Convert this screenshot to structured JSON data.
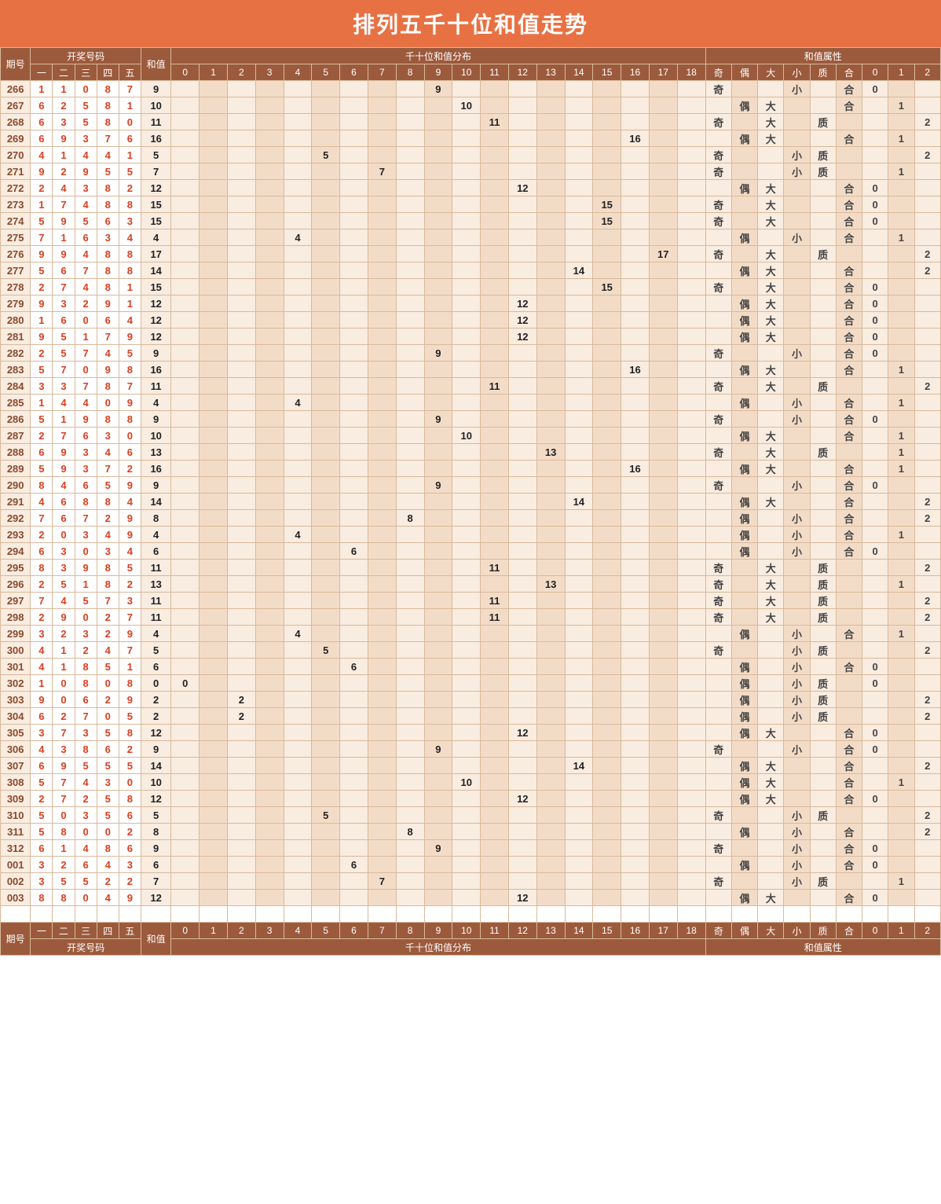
{
  "title": "排列五千十位和值走势",
  "headers": {
    "period": "期号",
    "nums_group": "开奖号码",
    "num_labels": [
      "一",
      "二",
      "三",
      "四",
      "五"
    ],
    "sum": "和值",
    "dist_group": "千十位和值分布",
    "dist_labels": [
      "0",
      "1",
      "2",
      "3",
      "4",
      "5",
      "6",
      "7",
      "8",
      "9",
      "10",
      "11",
      "12",
      "13",
      "14",
      "15",
      "16",
      "17",
      "18"
    ],
    "attr_group": "和值属性",
    "attr_labels": [
      "奇",
      "偶",
      "大",
      "小",
      "质",
      "合",
      "0",
      "1",
      "2"
    ]
  },
  "colors": {
    "title_bg": "#e87143",
    "header_bg": "#9c5a3c",
    "border": "#d9b99b",
    "cell_bg1": "#f9ece0",
    "cell_bg2": "#f3dcc7",
    "num_color": "#d94020"
  },
  "rows": [
    {
      "p": "266",
      "n": [
        1,
        1,
        0,
        8,
        7
      ],
      "s": 9,
      "a": {
        "奇": 1,
        "小": 1,
        "合": 1,
        "0": 1
      }
    },
    {
      "p": "267",
      "n": [
        6,
        2,
        5,
        8,
        1
      ],
      "s": 10,
      "a": {
        "偶": 1,
        "大": 1,
        "合": 1,
        "1": 1
      }
    },
    {
      "p": "268",
      "n": [
        6,
        3,
        5,
        8,
        0
      ],
      "s": 11,
      "a": {
        "奇": 1,
        "大": 1,
        "质": 1,
        "2": 1
      }
    },
    {
      "p": "269",
      "n": [
        6,
        9,
        3,
        7,
        6
      ],
      "s": 16,
      "a": {
        "偶": 1,
        "大": 1,
        "合": 1,
        "1": 1
      }
    },
    {
      "p": "270",
      "n": [
        4,
        1,
        4,
        4,
        1
      ],
      "s": 5,
      "a": {
        "奇": 1,
        "小": 1,
        "质": 1,
        "2": 1
      }
    },
    {
      "p": "271",
      "n": [
        9,
        2,
        9,
        5,
        5
      ],
      "s": 7,
      "a": {
        "奇": 1,
        "小": 1,
        "质": 1,
        "1": 1
      }
    },
    {
      "p": "272",
      "n": [
        2,
        4,
        3,
        8,
        2
      ],
      "s": 12,
      "a": {
        "偶": 1,
        "大": 1,
        "合": 1,
        "0": 1
      }
    },
    {
      "p": "273",
      "n": [
        1,
        7,
        4,
        8,
        8
      ],
      "s": 15,
      "a": {
        "奇": 1,
        "大": 1,
        "合": 1,
        "0": 1
      }
    },
    {
      "p": "274",
      "n": [
        5,
        9,
        5,
        6,
        3
      ],
      "s": 15,
      "a": {
        "奇": 1,
        "大": 1,
        "合": 1,
        "0": 1
      }
    },
    {
      "p": "275",
      "n": [
        7,
        1,
        6,
        3,
        4
      ],
      "s": 4,
      "a": {
        "偶": 1,
        "小": 1,
        "合": 1,
        "1": 1
      }
    },
    {
      "p": "276",
      "n": [
        9,
        9,
        4,
        8,
        8
      ],
      "s": 17,
      "a": {
        "奇": 1,
        "大": 1,
        "质": 1,
        "2": 1
      }
    },
    {
      "p": "277",
      "n": [
        5,
        6,
        7,
        8,
        8
      ],
      "s": 14,
      "a": {
        "偶": 1,
        "大": 1,
        "合": 1,
        "2": 1
      }
    },
    {
      "p": "278",
      "n": [
        2,
        7,
        4,
        8,
        1
      ],
      "s": 15,
      "a": {
        "奇": 1,
        "大": 1,
        "合": 1,
        "0": 1
      }
    },
    {
      "p": "279",
      "n": [
        9,
        3,
        2,
        9,
        1
      ],
      "s": 12,
      "a": {
        "偶": 1,
        "大": 1,
        "合": 1,
        "0": 1
      }
    },
    {
      "p": "280",
      "n": [
        1,
        6,
        0,
        6,
        4
      ],
      "s": 12,
      "a": {
        "偶": 1,
        "大": 1,
        "合": 1,
        "0": 1
      }
    },
    {
      "p": "281",
      "n": [
        9,
        5,
        1,
        7,
        9
      ],
      "s": 12,
      "a": {
        "偶": 1,
        "大": 1,
        "合": 1,
        "0": 1
      }
    },
    {
      "p": "282",
      "n": [
        2,
        5,
        7,
        4,
        5
      ],
      "s": 9,
      "a": {
        "奇": 1,
        "小": 1,
        "合": 1,
        "0": 1
      }
    },
    {
      "p": "283",
      "n": [
        5,
        7,
        0,
        9,
        8
      ],
      "s": 16,
      "a": {
        "偶": 1,
        "大": 1,
        "合": 1,
        "1": 1
      }
    },
    {
      "p": "284",
      "n": [
        3,
        3,
        7,
        8,
        7
      ],
      "s": 11,
      "a": {
        "奇": 1,
        "大": 1,
        "质": 1,
        "2": 1
      }
    },
    {
      "p": "285",
      "n": [
        1,
        4,
        4,
        0,
        9
      ],
      "s": 4,
      "a": {
        "偶": 1,
        "小": 1,
        "合": 1,
        "1": 1
      }
    },
    {
      "p": "286",
      "n": [
        5,
        1,
        9,
        8,
        8
      ],
      "s": 9,
      "a": {
        "奇": 1,
        "小": 1,
        "合": 1,
        "0": 1
      }
    },
    {
      "p": "287",
      "n": [
        2,
        7,
        6,
        3,
        0
      ],
      "s": 10,
      "a": {
        "偶": 1,
        "大": 1,
        "合": 1,
        "1": 1
      }
    },
    {
      "p": "288",
      "n": [
        6,
        9,
        3,
        4,
        6
      ],
      "s": 13,
      "a": {
        "奇": 1,
        "大": 1,
        "质": 1,
        "1": 1
      }
    },
    {
      "p": "289",
      "n": [
        5,
        9,
        3,
        7,
        2
      ],
      "s": 16,
      "a": {
        "偶": 1,
        "大": 1,
        "合": 1,
        "1": 1
      }
    },
    {
      "p": "290",
      "n": [
        8,
        4,
        6,
        5,
        9
      ],
      "s": 9,
      "a": {
        "奇": 1,
        "小": 1,
        "合": 1,
        "0": 1
      }
    },
    {
      "p": "291",
      "n": [
        4,
        6,
        8,
        8,
        4
      ],
      "s": 14,
      "a": {
        "偶": 1,
        "大": 1,
        "合": 1,
        "2": 1
      }
    },
    {
      "p": "292",
      "n": [
        7,
        6,
        7,
        2,
        9
      ],
      "s": 8,
      "a": {
        "偶": 1,
        "小": 1,
        "合": 1,
        "2": 1
      }
    },
    {
      "p": "293",
      "n": [
        2,
        0,
        3,
        4,
        9
      ],
      "s": 4,
      "a": {
        "偶": 1,
        "小": 1,
        "合": 1,
        "1": 1
      }
    },
    {
      "p": "294",
      "n": [
        6,
        3,
        0,
        3,
        4
      ],
      "s": 6,
      "a": {
        "偶": 1,
        "小": 1,
        "合": 1,
        "0": 1
      }
    },
    {
      "p": "295",
      "n": [
        8,
        3,
        9,
        8,
        5
      ],
      "s": 11,
      "a": {
        "奇": 1,
        "大": 1,
        "质": 1,
        "2": 1
      }
    },
    {
      "p": "296",
      "n": [
        2,
        5,
        1,
        8,
        2
      ],
      "s": 13,
      "a": {
        "奇": 1,
        "大": 1,
        "质": 1,
        "1": 1
      }
    },
    {
      "p": "297",
      "n": [
        7,
        4,
        5,
        7,
        3
      ],
      "s": 11,
      "a": {
        "奇": 1,
        "大": 1,
        "质": 1,
        "2": 1
      }
    },
    {
      "p": "298",
      "n": [
        2,
        9,
        0,
        2,
        7
      ],
      "s": 11,
      "a": {
        "奇": 1,
        "大": 1,
        "质": 1,
        "2": 1
      }
    },
    {
      "p": "299",
      "n": [
        3,
        2,
        3,
        2,
        9
      ],
      "s": 4,
      "a": {
        "偶": 1,
        "小": 1,
        "合": 1,
        "1": 1
      }
    },
    {
      "p": "300",
      "n": [
        4,
        1,
        2,
        4,
        7
      ],
      "s": 5,
      "a": {
        "奇": 1,
        "小": 1,
        "质": 1,
        "2": 1
      }
    },
    {
      "p": "301",
      "n": [
        4,
        1,
        8,
        5,
        1
      ],
      "s": 6,
      "a": {
        "偶": 1,
        "小": 1,
        "合": 1,
        "0": 1
      }
    },
    {
      "p": "302",
      "n": [
        1,
        0,
        8,
        0,
        8
      ],
      "s": 0,
      "a": {
        "偶": 1,
        "小": 1,
        "质": 1,
        "0": 1
      }
    },
    {
      "p": "303",
      "n": [
        9,
        0,
        6,
        2,
        9
      ],
      "s": 2,
      "a": {
        "偶": 1,
        "小": 1,
        "质": 1,
        "2": 1
      }
    },
    {
      "p": "304",
      "n": [
        6,
        2,
        7,
        0,
        5
      ],
      "s": 2,
      "a": {
        "偶": 1,
        "小": 1,
        "质": 1,
        "2": 1
      }
    },
    {
      "p": "305",
      "n": [
        3,
        7,
        3,
        5,
        8
      ],
      "s": 12,
      "a": {
        "偶": 1,
        "大": 1,
        "合": 1,
        "0": 1
      }
    },
    {
      "p": "306",
      "n": [
        4,
        3,
        8,
        6,
        2
      ],
      "s": 9,
      "a": {
        "奇": 1,
        "小": 1,
        "合": 1,
        "0": 1
      }
    },
    {
      "p": "307",
      "n": [
        6,
        9,
        5,
        5,
        5
      ],
      "s": 14,
      "a": {
        "偶": 1,
        "大": 1,
        "合": 1,
        "2": 1
      }
    },
    {
      "p": "308",
      "n": [
        5,
        7,
        4,
        3,
        0
      ],
      "s": 10,
      "a": {
        "偶": 1,
        "大": 1,
        "合": 1,
        "1": 1
      }
    },
    {
      "p": "309",
      "n": [
        2,
        7,
        2,
        5,
        8
      ],
      "s": 12,
      "a": {
        "偶": 1,
        "大": 1,
        "合": 1,
        "0": 1
      }
    },
    {
      "p": "310",
      "n": [
        5,
        0,
        3,
        5,
        6
      ],
      "s": 5,
      "a": {
        "奇": 1,
        "小": 1,
        "质": 1,
        "2": 1
      }
    },
    {
      "p": "311",
      "n": [
        5,
        8,
        0,
        0,
        2
      ],
      "s": 8,
      "a": {
        "偶": 1,
        "小": 1,
        "合": 1,
        "2": 1
      }
    },
    {
      "p": "312",
      "n": [
        6,
        1,
        4,
        8,
        6
      ],
      "s": 9,
      "a": {
        "奇": 1,
        "小": 1,
        "合": 1,
        "0": 1
      }
    },
    {
      "p": "001",
      "n": [
        3,
        2,
        6,
        4,
        3
      ],
      "s": 6,
      "a": {
        "偶": 1,
        "小": 1,
        "合": 1,
        "0": 1
      }
    },
    {
      "p": "002",
      "n": [
        3,
        5,
        5,
        2,
        2
      ],
      "s": 7,
      "a": {
        "奇": 1,
        "小": 1,
        "质": 1,
        "1": 1
      }
    },
    {
      "p": "003",
      "n": [
        8,
        8,
        0,
        4,
        9
      ],
      "s": 12,
      "a": {
        "偶": 1,
        "大": 1,
        "合": 1,
        "0": 1
      }
    }
  ]
}
